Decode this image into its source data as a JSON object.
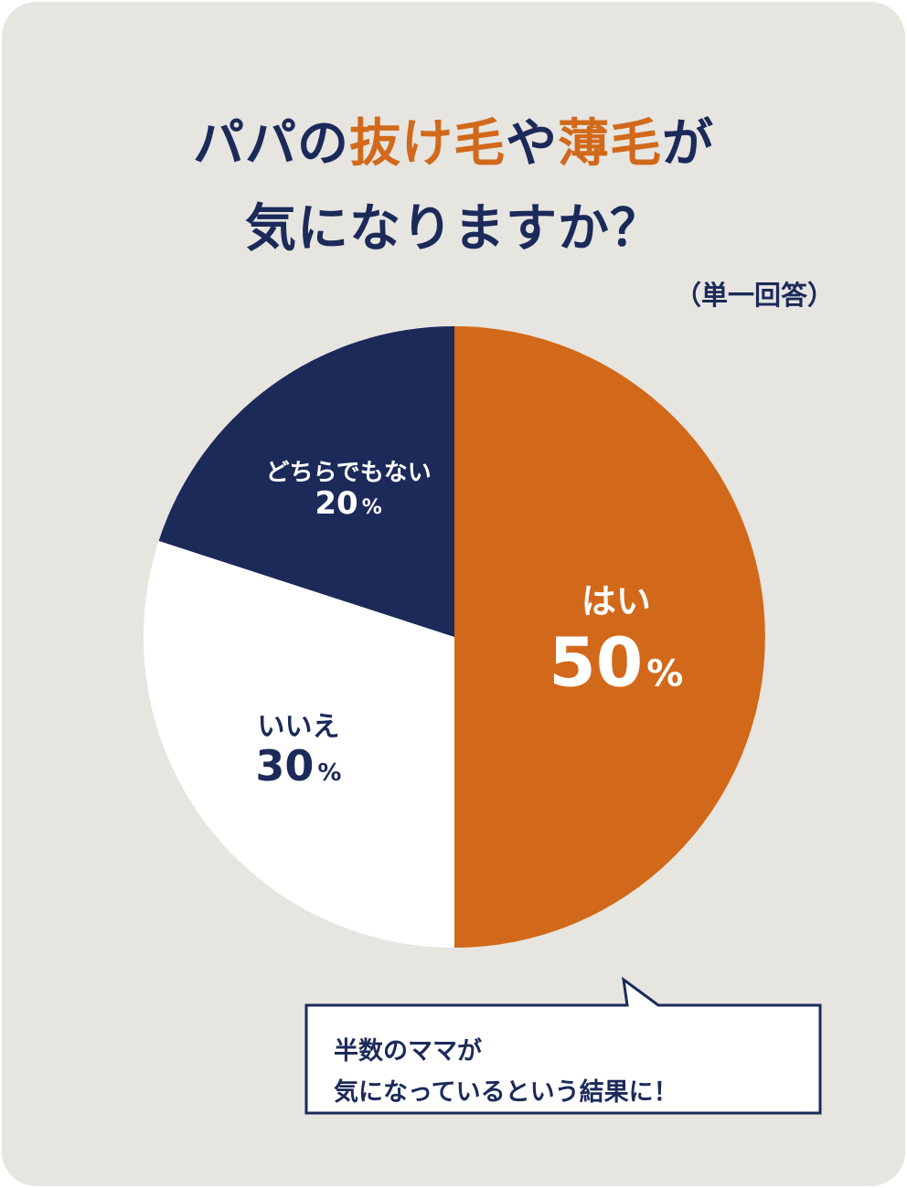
{
  "title": {
    "line1": [
      {
        "text": "パパの",
        "color": "#1b2a59"
      },
      {
        "text": "抜け毛",
        "color": "#d2691a"
      },
      {
        "text": "や",
        "color": "#1b2a59"
      },
      {
        "text": "薄毛",
        "color": "#d2691a"
      },
      {
        "text": "が",
        "color": "#1b2a59"
      }
    ],
    "line2": "気になりますか？"
  },
  "note": "（単一回答）",
  "colors": {
    "background": "#e6e5e0",
    "navy": "#1b2a59",
    "orange": "#d2691a",
    "white": "#ffffff"
  },
  "chart_data": {
    "type": "pie",
    "start": "12 o'clock, clockwise",
    "slices": [
      {
        "label": "はい",
        "value": 50,
        "value_text": "50",
        "unit": "%",
        "color": "#d2691a",
        "text_color": "#ffffff"
      },
      {
        "label": "いいえ",
        "value": 30,
        "value_text": "30",
        "unit": "%",
        "color": "#ffffff",
        "text_color": "#1b2a59"
      },
      {
        "label": "どちらでもない",
        "value": 20,
        "value_text": "20",
        "unit": "%",
        "color": "#1b2a59",
        "text_color": "#ffffff"
      }
    ]
  },
  "callout": {
    "line1": "半数のママが",
    "line2": "気になっているという結果に！"
  }
}
